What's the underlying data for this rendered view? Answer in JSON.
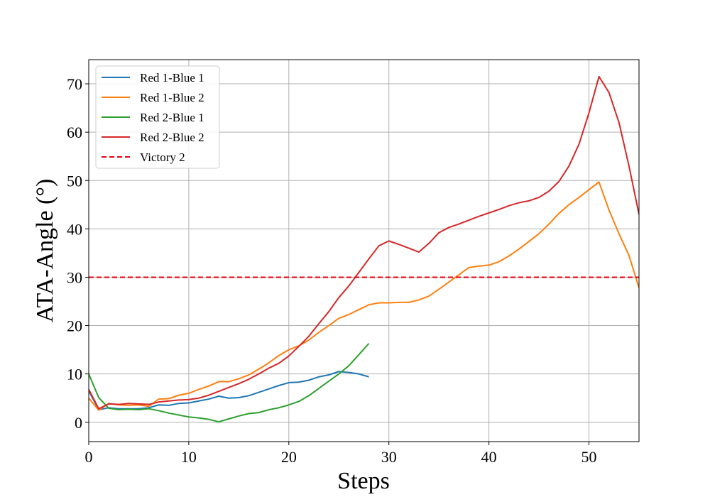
{
  "chart_data": {
    "type": "line",
    "xlabel": "Steps",
    "ylabel": "ATA-Angle (°)",
    "xlim": [
      0,
      55
    ],
    "ylim": [
      -4,
      75
    ],
    "xticks": [
      0,
      10,
      20,
      30,
      40,
      50
    ],
    "yticks": [
      0,
      10,
      20,
      30,
      40,
      50,
      60,
      70
    ],
    "grid": true,
    "legend_position": "upper-left",
    "series": [
      {
        "name": "Red 1-Blue 1",
        "color": "#1f77b4",
        "dash": "solid",
        "x": [
          0,
          1,
          2,
          3,
          4,
          5,
          6,
          7,
          8,
          9,
          10,
          11,
          12,
          13,
          14,
          15,
          16,
          17,
          18,
          19,
          20,
          21,
          22,
          23,
          24,
          25,
          26,
          27,
          28
        ],
        "y": [
          6.5,
          2.6,
          3.0,
          2.8,
          2.8,
          2.8,
          3.0,
          3.6,
          3.5,
          3.9,
          4.0,
          4.4,
          4.8,
          5.4,
          5.0,
          5.1,
          5.5,
          6.2,
          6.9,
          7.6,
          8.2,
          8.3,
          8.7,
          9.4,
          9.8,
          10.5,
          10.3,
          10.0,
          9.4
        ]
      },
      {
        "name": "Red 1-Blue 2",
        "color": "#ff7f0e",
        "dash": "solid",
        "x": [
          0,
          1,
          2,
          3,
          4,
          5,
          6,
          7,
          8,
          9,
          10,
          11,
          12,
          13,
          14,
          15,
          16,
          17,
          18,
          19,
          20,
          21,
          22,
          23,
          24,
          25,
          26,
          27,
          28,
          29,
          30,
          31,
          32,
          33,
          34,
          35,
          36,
          37,
          38,
          39,
          40,
          41,
          42,
          43,
          44,
          45,
          46,
          47,
          48,
          49,
          50,
          51,
          52,
          53,
          54,
          55
        ],
        "y": [
          5.0,
          2.5,
          3.9,
          3.6,
          3.5,
          3.6,
          3.3,
          4.8,
          4.9,
          5.6,
          6.0,
          6.8,
          7.5,
          8.4,
          8.4,
          9.0,
          9.8,
          11.0,
          12.3,
          13.8,
          15.0,
          15.8,
          17.0,
          18.6,
          20.0,
          21.5,
          22.3,
          23.3,
          24.3,
          24.7,
          24.7,
          24.8,
          24.8,
          25.3,
          26.1,
          27.5,
          29.0,
          30.5,
          32.0,
          32.3,
          32.5,
          33.2,
          34.4,
          35.8,
          37.4,
          39.0,
          41.0,
          43.2,
          45.0,
          46.5,
          48.1,
          49.7,
          43.9,
          39.0,
          34.5,
          27.8
        ]
      },
      {
        "name": "Red 2-Blue 1",
        "color": "#2ca02c",
        "dash": "solid",
        "x": [
          0,
          1,
          2,
          3,
          4,
          5,
          6,
          7,
          8,
          9,
          10,
          11,
          12,
          13,
          14,
          15,
          16,
          17,
          18,
          19,
          20,
          21,
          22,
          23,
          24,
          25,
          26,
          27,
          28
        ],
        "y": [
          10.0,
          5.1,
          2.9,
          2.6,
          2.7,
          2.6,
          2.8,
          2.4,
          1.9,
          1.5,
          1.1,
          0.9,
          0.6,
          0.1,
          0.7,
          1.3,
          1.8,
          2.0,
          2.6,
          3.0,
          3.6,
          4.3,
          5.5,
          7.0,
          8.5,
          10.0,
          11.7,
          14.0,
          16.3
        ]
      },
      {
        "name": "Red 2-Blue 2",
        "color": "#d62728",
        "dash": "solid",
        "x": [
          0,
          1,
          2,
          3,
          4,
          5,
          6,
          7,
          8,
          9,
          10,
          11,
          12,
          13,
          14,
          15,
          16,
          17,
          18,
          19,
          20,
          21,
          22,
          23,
          24,
          25,
          26,
          27,
          28,
          29,
          30,
          31,
          32,
          33,
          34,
          35,
          36,
          37,
          38,
          39,
          40,
          41,
          42,
          43,
          44,
          45,
          46,
          47,
          48,
          49,
          50,
          51,
          52,
          53,
          54,
          55
        ],
        "y": [
          6.8,
          2.8,
          3.8,
          3.7,
          3.9,
          3.8,
          3.7,
          4.2,
          4.4,
          4.6,
          4.7,
          5.0,
          5.6,
          6.4,
          7.2,
          8.0,
          8.9,
          10.0,
          11.2,
          12.2,
          13.7,
          15.7,
          17.8,
          20.4,
          22.9,
          25.8,
          28.2,
          31.0,
          33.8,
          36.5,
          37.5,
          36.8,
          36.0,
          35.2,
          37.0,
          39.2,
          40.3,
          41.0,
          41.8,
          42.6,
          43.3,
          44.0,
          44.8,
          45.4,
          45.8,
          46.5,
          47.8,
          49.8,
          53.0,
          57.5,
          64.0,
          71.5,
          68.2,
          62.0,
          53.0,
          43.0
        ]
      },
      {
        "name": "Victory 2",
        "color": "#e8000b",
        "dash": "dashed",
        "x": [
          0,
          55
        ],
        "y": [
          30,
          30
        ]
      }
    ]
  }
}
